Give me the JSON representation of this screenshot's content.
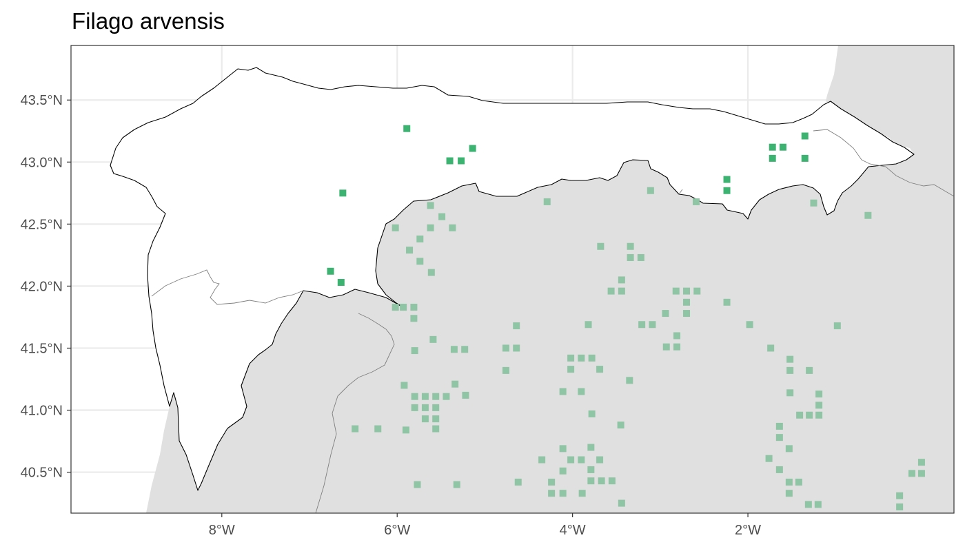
{
  "title": "Filago arvensis",
  "axes": {
    "x": {
      "ticks": [
        "8°W",
        "6°W",
        "4°W",
        "2°W"
      ],
      "values": [
        -8,
        -6,
        -4,
        -2
      ],
      "range": [
        -9.72,
        0.35
      ]
    },
    "y": {
      "ticks": [
        "43.5°N",
        "43.0°N",
        "42.5°N",
        "42.0°N",
        "41.5°N",
        "41.0°N",
        "40.5°N"
      ],
      "values": [
        43.5,
        43.0,
        42.5,
        42.0,
        41.5,
        41.0,
        40.5
      ],
      "range": [
        40.17,
        43.94
      ]
    },
    "grid": true
  },
  "colors": {
    "in_region": "#3cb371",
    "out_region": "#8fc5a5",
    "land_outside": "#e0e0e0",
    "region_fill": "#ffffff",
    "border": "#000000",
    "grid": "#ebebeb"
  },
  "chart_data": {
    "type": "scatter",
    "title": "Filago arvensis",
    "xlabel": "",
    "ylabel": "",
    "xlim": [
      -9.72,
      0.35
    ],
    "ylim": [
      40.17,
      43.94
    ],
    "series": [
      {
        "points": [
          [
            -5.89,
            43.27
          ],
          [
            -5.4,
            43.01
          ],
          [
            -5.27,
            43.01
          ],
          [
            -5.14,
            43.11
          ],
          [
            -6.62,
            42.75
          ],
          [
            -6.76,
            42.12
          ],
          [
            -6.64,
            42.03
          ],
          [
            -1.72,
            43.12
          ],
          [
            -1.72,
            43.03
          ],
          [
            -1.6,
            43.12
          ],
          [
            -1.35,
            43.21
          ],
          [
            -1.35,
            43.03
          ],
          [
            -2.24,
            42.86
          ],
          [
            -2.24,
            42.77
          ]
        ]
      },
      {
        "points": [
          [
            -5.62,
            42.65
          ],
          [
            -5.49,
            42.56
          ],
          [
            -5.62,
            42.47
          ],
          [
            -5.37,
            42.47
          ],
          [
            -6.02,
            42.47
          ],
          [
            -5.74,
            42.38
          ],
          [
            -5.86,
            42.29
          ],
          [
            -5.74,
            42.2
          ],
          [
            -5.61,
            42.11
          ],
          [
            -6.02,
            41.83
          ],
          [
            -5.93,
            41.83
          ],
          [
            -5.81,
            41.83
          ],
          [
            -5.81,
            41.74
          ],
          [
            -5.59,
            41.57
          ],
          [
            -5.8,
            41.48
          ],
          [
            -5.35,
            41.49
          ],
          [
            -5.23,
            41.49
          ],
          [
            -5.92,
            41.2
          ],
          [
            -5.8,
            41.11
          ],
          [
            -5.68,
            41.11
          ],
          [
            -5.56,
            41.11
          ],
          [
            -5.44,
            41.11
          ],
          [
            -5.34,
            41.21
          ],
          [
            -5.22,
            41.12
          ],
          [
            -5.8,
            41.02
          ],
          [
            -5.68,
            41.02
          ],
          [
            -5.56,
            41.02
          ],
          [
            -5.68,
            40.93
          ],
          [
            -5.56,
            40.93
          ],
          [
            -5.56,
            40.85
          ],
          [
            -6.48,
            40.85
          ],
          [
            -6.22,
            40.85
          ],
          [
            -5.9,
            40.84
          ],
          [
            -5.77,
            40.4
          ],
          [
            -5.32,
            40.4
          ],
          [
            -4.29,
            42.68
          ],
          [
            -3.68,
            42.32
          ],
          [
            -3.34,
            42.32
          ],
          [
            -3.34,
            42.23
          ],
          [
            -3.22,
            42.23
          ],
          [
            -3.44,
            42.05
          ],
          [
            -3.56,
            41.96
          ],
          [
            -3.44,
            41.96
          ],
          [
            -3.11,
            42.77
          ],
          [
            -2.59,
            42.68
          ],
          [
            -2.82,
            41.96
          ],
          [
            -2.7,
            41.96
          ],
          [
            -2.58,
            41.96
          ],
          [
            -2.7,
            41.87
          ],
          [
            -2.7,
            41.78
          ],
          [
            -2.94,
            41.78
          ],
          [
            -2.24,
            41.87
          ],
          [
            -1.98,
            41.69
          ],
          [
            -3.21,
            41.69
          ],
          [
            -3.09,
            41.69
          ],
          [
            -2.81,
            41.6
          ],
          [
            -2.81,
            41.51
          ],
          [
            -2.93,
            41.51
          ],
          [
            -3.82,
            41.69
          ],
          [
            -4.64,
            41.68
          ],
          [
            -4.76,
            41.5
          ],
          [
            -4.64,
            41.5
          ],
          [
            -4.76,
            41.32
          ],
          [
            -4.02,
            41.42
          ],
          [
            -3.9,
            41.42
          ],
          [
            -3.78,
            41.42
          ],
          [
            -4.02,
            41.33
          ],
          [
            -3.69,
            41.33
          ],
          [
            -4.11,
            41.15
          ],
          [
            -3.9,
            41.15
          ],
          [
            -3.35,
            41.24
          ],
          [
            -3.78,
            40.97
          ],
          [
            -3.45,
            40.88
          ],
          [
            -4.35,
            40.6
          ],
          [
            -4.11,
            40.69
          ],
          [
            -4.02,
            40.6
          ],
          [
            -3.9,
            40.6
          ],
          [
            -3.69,
            40.6
          ],
          [
            -3.79,
            40.7
          ],
          [
            -4.11,
            40.51
          ],
          [
            -3.79,
            40.52
          ],
          [
            -4.24,
            40.42
          ],
          [
            -4.24,
            40.33
          ],
          [
            -4.11,
            40.33
          ],
          [
            -3.79,
            40.43
          ],
          [
            -3.67,
            40.43
          ],
          [
            -3.55,
            40.43
          ],
          [
            -3.89,
            40.33
          ],
          [
            -3.44,
            40.25
          ],
          [
            -4.62,
            40.42
          ],
          [
            -1.25,
            42.67
          ],
          [
            -0.63,
            42.57
          ],
          [
            -0.98,
            41.68
          ],
          [
            -1.74,
            41.5
          ],
          [
            -1.52,
            41.41
          ],
          [
            -1.52,
            41.32
          ],
          [
            -1.3,
            41.32
          ],
          [
            -1.52,
            41.14
          ],
          [
            -1.19,
            41.13
          ],
          [
            -1.19,
            41.04
          ],
          [
            -1.41,
            40.96
          ],
          [
            -1.3,
            40.96
          ],
          [
            -1.19,
            40.96
          ],
          [
            -1.64,
            40.87
          ],
          [
            -1.64,
            40.78
          ],
          [
            -1.53,
            40.69
          ],
          [
            -1.76,
            40.61
          ],
          [
            -1.64,
            40.52
          ],
          [
            -1.53,
            40.42
          ],
          [
            -1.42,
            40.42
          ],
          [
            -1.53,
            40.33
          ],
          [
            -1.31,
            40.24
          ],
          [
            -1.2,
            40.24
          ],
          [
            -0.27,
            40.31
          ],
          [
            -0.27,
            40.22
          ],
          [
            -0.13,
            40.49
          ],
          [
            -0.02,
            40.49
          ],
          [
            -0.02,
            40.58
          ]
        ]
      }
    ]
  }
}
